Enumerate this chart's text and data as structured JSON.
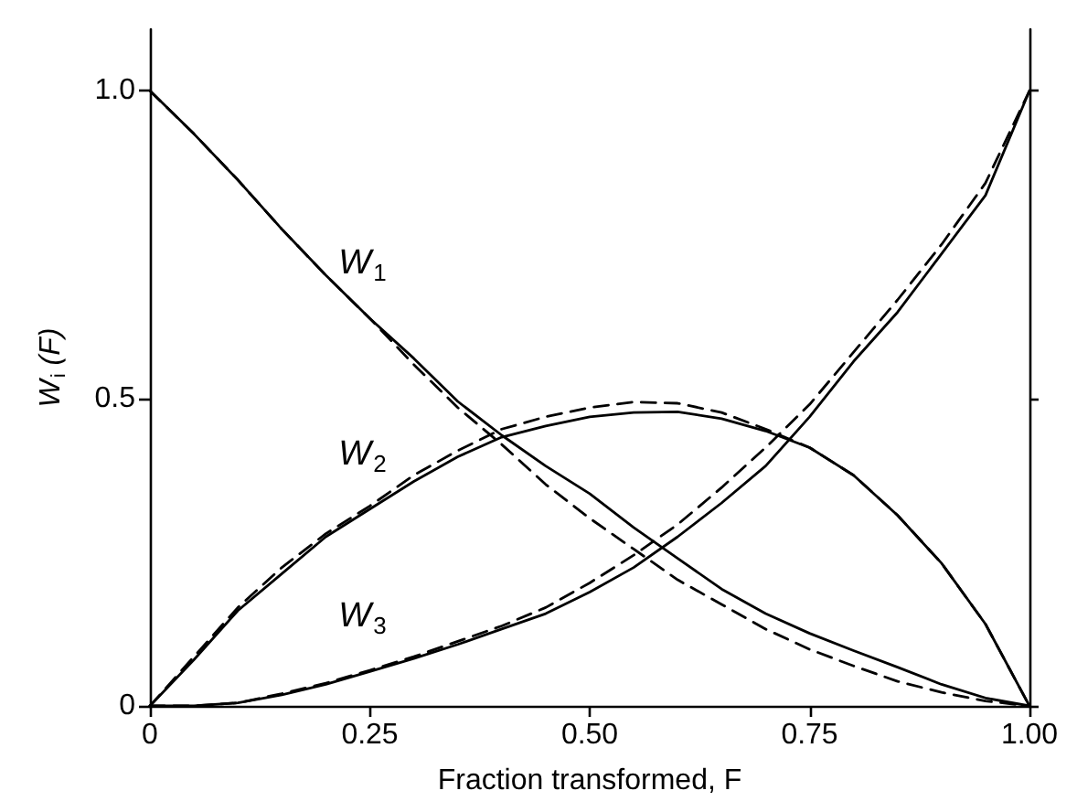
{
  "chart_data": {
    "type": "line",
    "xlabel": "Fraction transformed, F",
    "ylabel": "W$_{i}$ (F)",
    "x": [
      0,
      0.05,
      0.1,
      0.15,
      0.2,
      0.25,
      0.3,
      0.35,
      0.4,
      0.45,
      0.5,
      0.55,
      0.6,
      0.65,
      0.7,
      0.75,
      0.8,
      0.85,
      0.9,
      0.95,
      1.0
    ],
    "series": [
      {
        "name": "W$_{1}$",
        "color": "#000000",
        "line_style": "solid",
        "values": [
          1.0,
          0.93,
          0.855,
          0.775,
          0.7,
          0.63,
          0.565,
          0.495,
          0.44,
          0.39,
          0.345,
          0.29,
          0.24,
          0.19,
          0.15,
          0.118,
          0.09,
          0.063,
          0.035,
          0.013,
          0
        ]
      },
      {
        "color": "#000000",
        "line_style": "dashed",
        "values": [
          1.0,
          0.93,
          0.855,
          0.775,
          0.7,
          0.63,
          0.555,
          0.485,
          0.425,
          0.36,
          0.305,
          0.255,
          0.205,
          0.165,
          0.125,
          0.092,
          0.065,
          0.04,
          0.022,
          0.008,
          0
        ]
      },
      {
        "name": "W$_{2}$",
        "color": "#000000",
        "line_style": "solid",
        "values": [
          0,
          0.075,
          0.155,
          0.215,
          0.275,
          0.32,
          0.365,
          0.405,
          0.437,
          0.455,
          0.47,
          0.477,
          0.478,
          0.467,
          0.447,
          0.42,
          0.375,
          0.31,
          0.232,
          0.133,
          0
        ]
      },
      {
        "color": "#000000",
        "line_style": "dashed",
        "values": [
          0,
          0.08,
          0.16,
          0.225,
          0.28,
          0.325,
          0.375,
          0.415,
          0.45,
          0.47,
          0.485,
          0.494,
          0.492,
          0.477,
          0.45,
          0.42,
          0.375,
          0.31,
          0.232,
          0.133,
          0
        ]
      },
      {
        "name": "W$_{3}$",
        "color": "#000000",
        "line_style": "solid",
        "values": [
          0,
          0,
          0.005,
          0.018,
          0.035,
          0.056,
          0.077,
          0.1,
          0.125,
          0.15,
          0.185,
          0.225,
          0.275,
          0.33,
          0.39,
          0.47,
          0.56,
          0.64,
          0.735,
          0.83,
          1.0
        ]
      },
      {
        "color": "#000000",
        "line_style": "dashed",
        "values": [
          0,
          0,
          0.005,
          0.02,
          0.037,
          0.058,
          0.08,
          0.105,
          0.13,
          0.16,
          0.2,
          0.245,
          0.295,
          0.355,
          0.42,
          0.49,
          0.575,
          0.66,
          0.75,
          0.85,
          1.0
        ]
      }
    ],
    "xlim": [
      0,
      1
    ],
    "xticks": [
      0,
      0.25,
      {
        "value": 0.5,
        "label": "0.50"
      },
      0.75,
      {
        "value": 1,
        "label": "1.00"
      }
    ],
    "ylim": [
      0,
      1.1
    ],
    "yticks": [
      0,
      0.5,
      {
        "value": 1,
        "label": "1.0"
      }
    ],
    "grid": false,
    "marker": "none"
  }
}
